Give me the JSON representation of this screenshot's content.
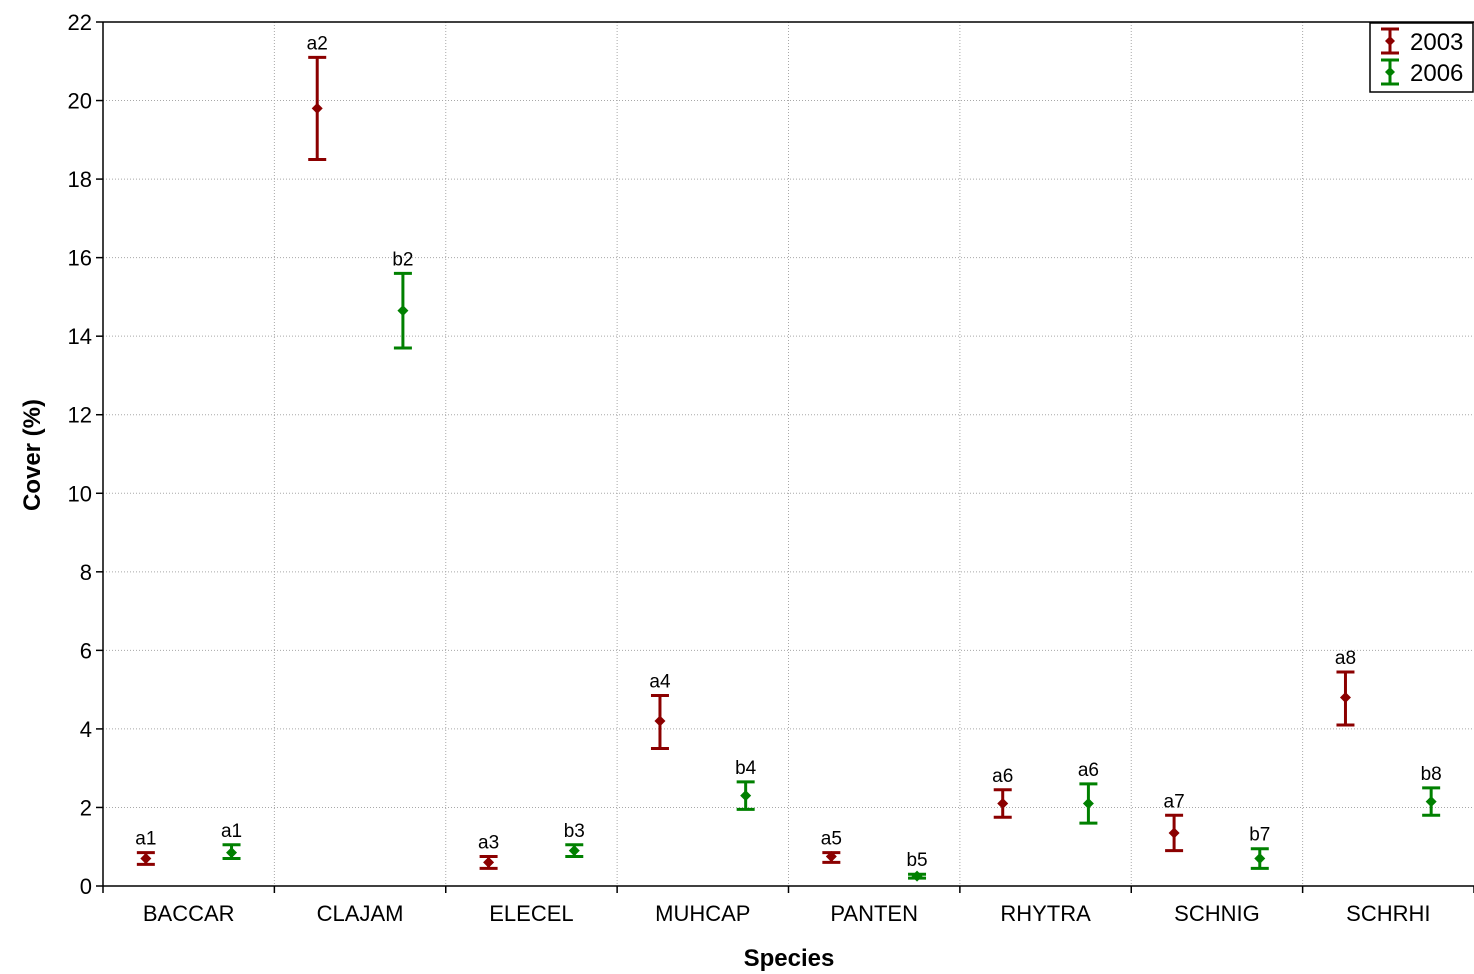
{
  "chart_data": {
    "type": "scatter",
    "xlabel": "Species",
    "ylabel": "Cover (%)",
    "ylim": [
      0,
      22
    ],
    "yticks": [
      0,
      2,
      4,
      6,
      8,
      10,
      12,
      14,
      16,
      18,
      20,
      22
    ],
    "grid": true,
    "legend_position": "top-right",
    "categories": [
      "BACCAR",
      "CLAJAM",
      "ELECEL",
      "MUHCAP",
      "PANTEN",
      "RHYTRA",
      "SCHNIG",
      "SCHRHI"
    ],
    "series": [
      {
        "name": "2003",
        "color": "#8b0000",
        "values": [
          0.7,
          19.8,
          0.6,
          4.2,
          0.75,
          2.1,
          1.35,
          4.8
        ],
        "lower": [
          0.55,
          18.5,
          0.45,
          3.5,
          0.6,
          1.75,
          0.9,
          4.1
        ],
        "upper": [
          0.85,
          21.1,
          0.75,
          4.85,
          0.85,
          2.45,
          1.8,
          5.45
        ],
        "labels": [
          "a1",
          "a2",
          "a3",
          "a4",
          "a5",
          "a6",
          "a7",
          "a8"
        ]
      },
      {
        "name": "2006",
        "color": "#008000",
        "values": [
          0.85,
          14.65,
          0.9,
          2.3,
          0.25,
          2.1,
          0.7,
          2.15
        ],
        "lower": [
          0.7,
          13.7,
          0.75,
          1.95,
          0.2,
          1.6,
          0.45,
          1.8
        ],
        "upper": [
          1.05,
          15.6,
          1.05,
          2.65,
          0.3,
          2.6,
          0.95,
          2.5
        ],
        "labels": [
          "a1",
          "b2",
          "b3",
          "b4",
          "b5",
          "a6",
          "b7",
          "b8"
        ]
      }
    ]
  }
}
